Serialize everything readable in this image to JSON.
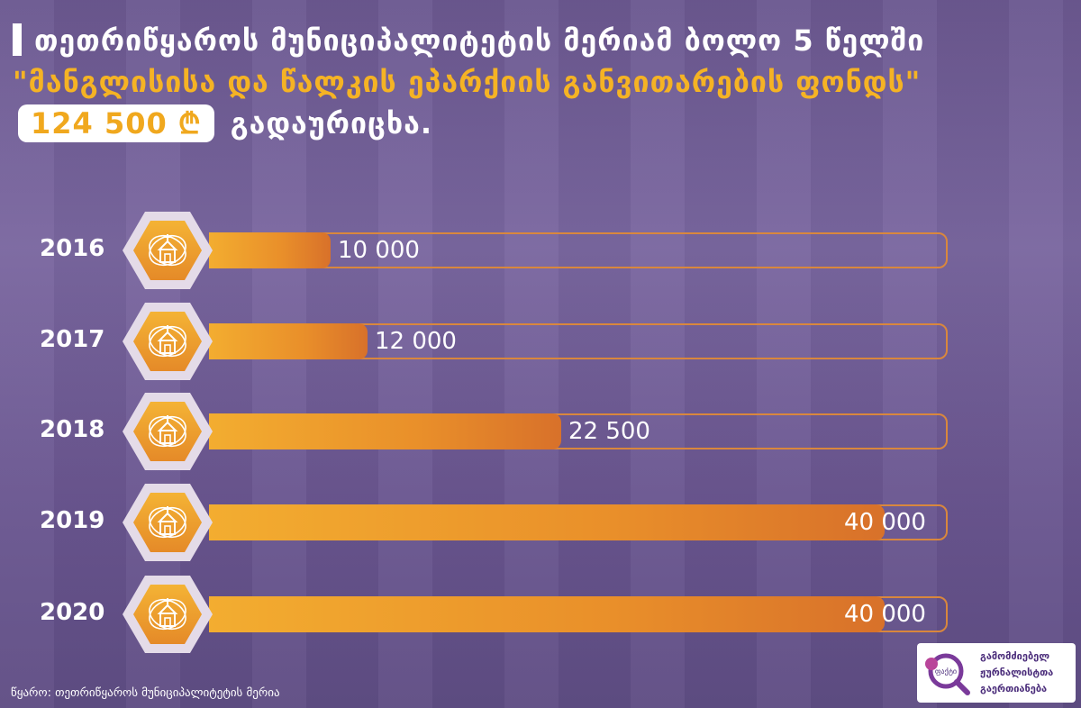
{
  "title": {
    "part1": "თეთრიწყაროს მუნიციპალიტეტის მერიამ ბოლო 5 წელში",
    "accent": "\"მანგლისისა და წალკის ეპარქიის განვითარების ფონდს\"",
    "amount": "124 500 ₾",
    "part2": "გადაურიცხა."
  },
  "chart_data": {
    "type": "bar",
    "orientation": "horizontal",
    "categories": [
      "2016",
      "2017",
      "2018",
      "2019",
      "2020"
    ],
    "values": [
      10000,
      12000,
      22500,
      40000,
      40000
    ],
    "value_labels": [
      "10 000",
      "12 000",
      "22 500",
      "40 000",
      "40 000"
    ],
    "xlim": [
      0,
      40000
    ]
  },
  "colors": {
    "bar": "#e98f2a",
    "accent": "#f5b324",
    "background": "#6e5a92"
  },
  "icon": "church-icon",
  "footer": {
    "source": "წყარო:  თეთრიწყაროს მუნიციპალიტეტის მერია"
  },
  "logo": {
    "line1": "გამომძიებელ",
    "line2": "ჟურნალისტთა",
    "line3": "გაერთიანება",
    "mark_text": "ფაქტი"
  }
}
